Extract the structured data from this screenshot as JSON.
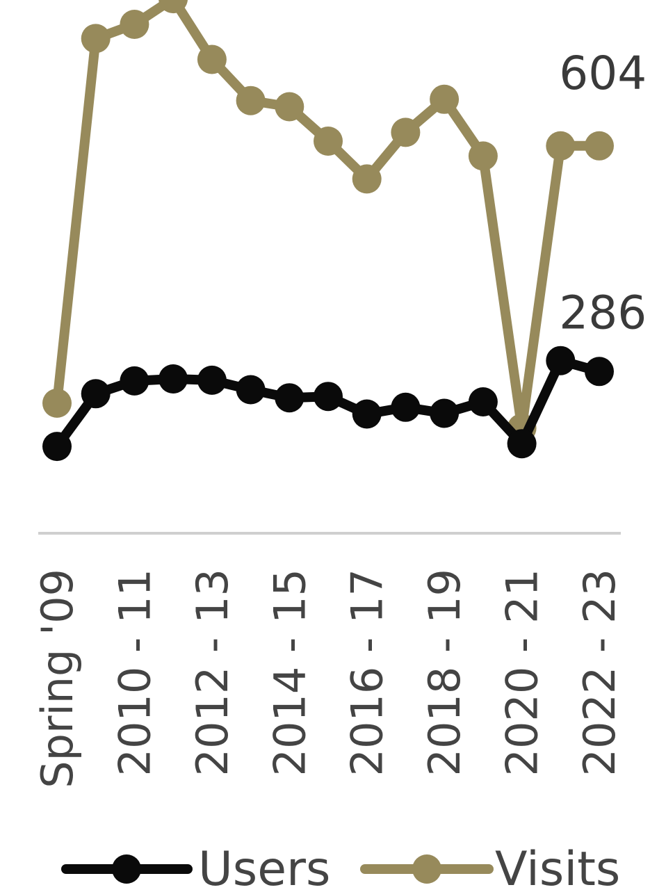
{
  "chart_data": {
    "type": "line",
    "categories": [
      "Spring '09",
      "",
      "2010 - 11",
      "",
      "2012 - 13",
      "",
      "2014 - 15",
      "",
      "2016 - 17",
      "",
      "2018 - 19",
      "",
      "2020 - 21",
      "",
      "2022 - 23"
    ],
    "series": [
      {
        "name": "Users",
        "color": "#0a0a0a",
        "values": [
          159,
          237,
          256,
          259,
          257,
          243,
          231,
          233,
          207,
          217,
          208,
          225,
          163,
          286,
          270
        ]
      },
      {
        "name": "Visits",
        "color": "#978a5b",
        "values": [
          223,
          763,
          784,
          822,
          732,
          671,
          662,
          611,
          555,
          624,
          673,
          589,
          186,
          604,
          604
        ]
      }
    ],
    "data_labels": [
      {
        "series": "Visits",
        "index": 13,
        "text": "604"
      },
      {
        "series": "Users",
        "index": 13,
        "text": "286"
      }
    ],
    "ylim": [
      120,
      820
    ],
    "legend": {
      "position": "bottom",
      "entries": [
        "Users",
        "Visits"
      ]
    },
    "grid": false
  }
}
